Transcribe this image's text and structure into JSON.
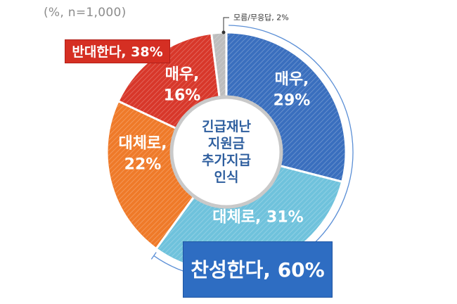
{
  "note": "(%, n=1,000)",
  "chart_data": {
    "type": "pie",
    "center_label": [
      "긴급재난",
      "지원금",
      "추가지급",
      "인식"
    ],
    "slices": [
      {
        "name": "매우",
        "value": 29,
        "color": "#3a6fbe",
        "label": [
          "매우,",
          "29%"
        ]
      },
      {
        "name": "대체로",
        "value": 31,
        "color": "#6fc2dc",
        "label": [
          "대체로, 31%"
        ]
      },
      {
        "name": "대체로",
        "value": 22,
        "color": "#ef7a29",
        "label": [
          "대체로,",
          "22%"
        ]
      },
      {
        "name": "매우",
        "value": 16,
        "color": "#d8372a",
        "label": [
          "매우,",
          "16%"
        ]
      },
      {
        "name": "모름/무응답",
        "value": 2,
        "color": "#bdbdbd",
        "label": [
          "모름/무응답, 2%"
        ]
      }
    ],
    "groups": [
      {
        "label": "찬성한다, 60%",
        "value": 60,
        "color": "#2e6dc2"
      },
      {
        "label": "반대한다, 38%",
        "value": 38,
        "color": "#d52f23"
      }
    ]
  }
}
